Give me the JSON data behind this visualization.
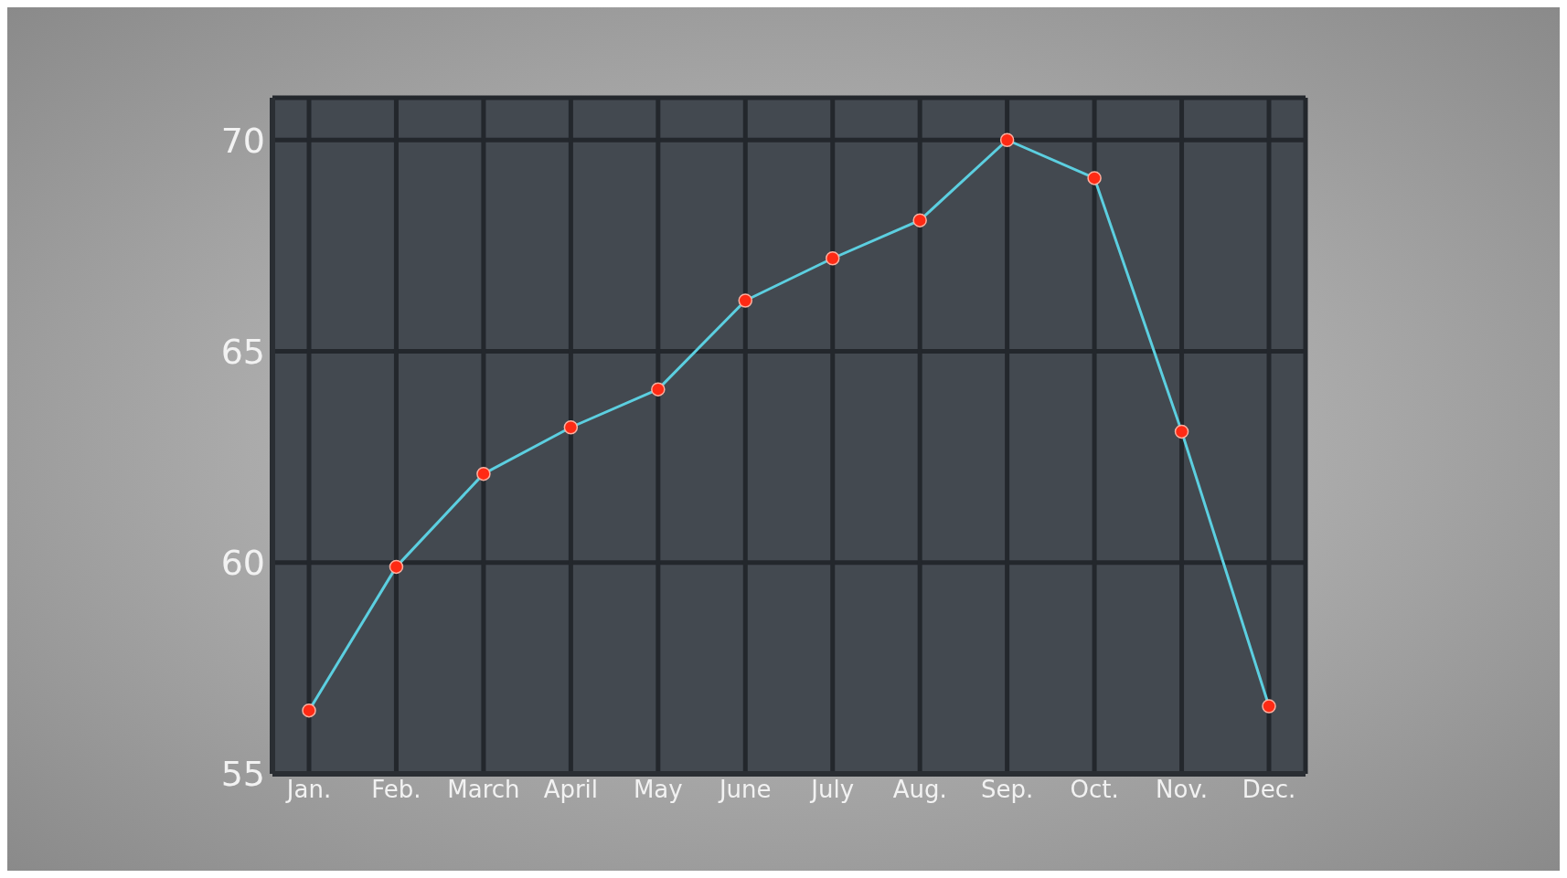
{
  "chart_data": {
    "type": "line",
    "categories": [
      "Jan.",
      "Feb.",
      "March",
      "April",
      "May",
      "June",
      "July",
      "Aug.",
      "Sep.",
      "Oct.",
      "Nov.",
      "Dec."
    ],
    "series": [
      {
        "color": "#5ccfe0",
        "values": [
          56.5,
          59.9,
          62.1,
          63.2,
          64.1,
          66.2,
          67.2,
          68.1,
          70.0,
          69.1,
          63.1,
          56.6
        ]
      }
    ],
    "ylim": [
      55,
      71
    ],
    "yticks": [
      55,
      60,
      65,
      70
    ],
    "grid": true,
    "marker": "circle",
    "line_style": "solid"
  }
}
